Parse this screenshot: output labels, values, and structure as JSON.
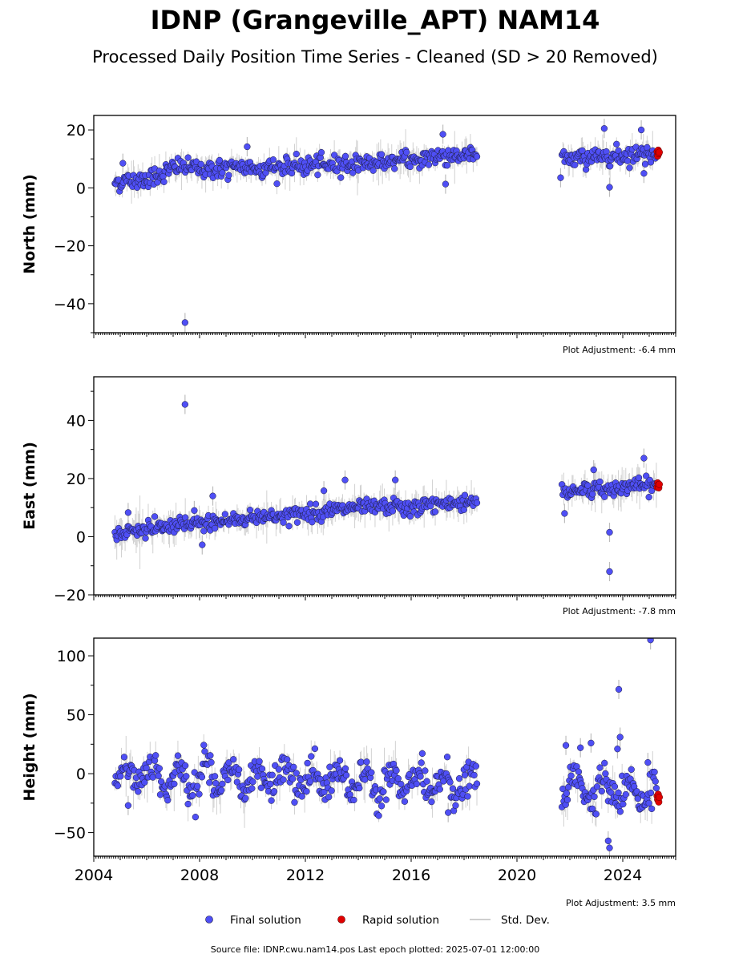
{
  "title": "IDNP (Grangeville_APT) NAM14",
  "subtitle": "Processed Daily Position Time Series - Cleaned (SD > 20 Removed)",
  "footer": "Source file: IDNP.cwu.nam14.pos  Last epoch plotted: 2025-07-01 12:00:00",
  "legend": {
    "final": "Final solution",
    "rapid": "Rapid solution",
    "sd": "Std. Dev."
  },
  "colors": {
    "final": "#4f4ff5",
    "rapid": "#e00000",
    "sd": "#bdbdbd",
    "edge": "#1a1a3a"
  },
  "chart_data": [
    {
      "type": "scatter",
      "panel": "north",
      "ylabel": "North (mm)",
      "adjustment": "Plot Adjustment: -6.4 mm",
      "xlim": [
        2004,
        2026
      ],
      "ylim": [
        -50,
        25
      ],
      "yticks": [
        20,
        0,
        -20,
        -40
      ],
      "ytick_labels": [
        "20",
        "0",
        "−20",
        "−40"
      ],
      "xticks": [
        2004,
        2008,
        2012,
        2016,
        2020,
        2024
      ],
      "xtick_labels": [
        "2004",
        "2008",
        "2012",
        "2016",
        "2020",
        "2024"
      ],
      "show_xtick_labels": false,
      "series": [
        {
          "name": "Final solution",
          "segments": [
            [
              2004.8,
              2.0
            ],
            [
              2005.5,
              2.5
            ],
            [
              2006.3,
              4.0
            ],
            [
              2007.2,
              7.5
            ],
            [
              2008.0,
              6.5
            ],
            [
              2009.0,
              6.5
            ],
            [
              2010.0,
              7.0
            ],
            [
              2011.0,
              7.0
            ],
            [
              2012.0,
              7.5
            ],
            [
              2013.0,
              8.0
            ],
            [
              2014.0,
              8.5
            ],
            [
              2015.0,
              9.0
            ],
            [
              2016.0,
              9.5
            ],
            [
              2017.0,
              11.0
            ],
            [
              2018.5,
              11.5
            ]
          ],
          "segments2": [
            [
              2021.7,
              10.0
            ],
            [
              2022.5,
              10.5
            ],
            [
              2023.3,
              11.0
            ],
            [
              2024.3,
              11.5
            ],
            [
              2025.3,
              12.0
            ]
          ],
          "noise": 1.6,
          "std": 2.6,
          "outliers": [
            [
              2007.45,
              -46.5
            ],
            [
              2017.3,
              1.3
            ],
            [
              2005.1,
              8.5
            ],
            [
              2009.8,
              14.2
            ],
            [
              2023.5,
              0.2
            ],
            [
              2023.3,
              20.5
            ],
            [
              2024.8,
              5.0
            ],
            [
              2024.7,
              20.0
            ],
            [
              2017.2,
              18.5
            ],
            [
              2021.65,
              3.5
            ]
          ]
        },
        {
          "name": "Rapid solution",
          "points": [
            [
              2025.3,
              12.5
            ],
            [
              2025.32,
              11.0
            ],
            [
              2025.34,
              13.0
            ],
            [
              2025.36,
              11.8
            ],
            [
              2025.38,
              12.3
            ]
          ]
        }
      ]
    },
    {
      "type": "scatter",
      "panel": "east",
      "ylabel": "East (mm)",
      "adjustment": "Plot Adjustment: -7.8 mm",
      "xlim": [
        2004,
        2026
      ],
      "ylim": [
        -20,
        55
      ],
      "yticks": [
        40,
        20,
        0,
        -20
      ],
      "ytick_labels": [
        "40",
        "20",
        "0",
        "−20"
      ],
      "xticks": [
        2004,
        2008,
        2012,
        2016,
        2020,
        2024
      ],
      "xtick_labels": [
        "2004",
        "2008",
        "2012",
        "2016",
        "2020",
        "2024"
      ],
      "show_xtick_labels": false,
      "series": [
        {
          "name": "Final solution",
          "segments": [
            [
              2004.8,
              1.0
            ],
            [
              2005.5,
              2.0
            ],
            [
              2006.5,
              3.0
            ],
            [
              2007.5,
              4.0
            ],
            [
              2008.5,
              5.0
            ],
            [
              2009.5,
              6.0
            ],
            [
              2010.5,
              7.0
            ],
            [
              2011.5,
              7.5
            ],
            [
              2012.5,
              8.5
            ],
            [
              2013.5,
              9.5
            ],
            [
              2014.5,
              10.0
            ],
            [
              2015.5,
              10.5
            ],
            [
              2016.0,
              9.0
            ],
            [
              2016.5,
              11.0
            ],
            [
              2017.5,
              11.5
            ],
            [
              2018.5,
              12.5
            ]
          ],
          "segments2": [
            [
              2021.7,
              15.0
            ],
            [
              2022.5,
              16.5
            ],
            [
              2023.3,
              16.0
            ],
            [
              2024.3,
              17.5
            ],
            [
              2025.3,
              17.5
            ]
          ],
          "noise": 1.3,
          "std": 3.0,
          "outliers": [
            [
              2007.45,
              45.5
            ],
            [
              2005.3,
              8.3
            ],
            [
              2007.8,
              9.0
            ],
            [
              2008.1,
              -2.8
            ],
            [
              2008.5,
              14.0
            ],
            [
              2013.5,
              19.5
            ],
            [
              2015.4,
              19.5
            ],
            [
              2023.5,
              -12.0
            ],
            [
              2023.5,
              1.5
            ],
            [
              2022.9,
              23.0
            ],
            [
              2024.8,
              27.0
            ],
            [
              2021.8,
              8.0
            ],
            [
              2012.7,
              15.8
            ]
          ]
        },
        {
          "name": "Rapid solution",
          "points": [
            [
              2025.3,
              17.0
            ],
            [
              2025.32,
              18.5
            ],
            [
              2025.34,
              17.8
            ],
            [
              2025.36,
              16.8
            ],
            [
              2025.38,
              18.0
            ]
          ]
        }
      ]
    },
    {
      "type": "scatter",
      "panel": "height",
      "ylabel": "Height (mm)",
      "adjustment": "Plot Adjustment: 3.5 mm",
      "xlim": [
        2004,
        2026
      ],
      "ylim": [
        -70,
        115
      ],
      "yticks": [
        100,
        50,
        0,
        -50
      ],
      "ytick_labels": [
        "100",
        "50",
        "0",
        "−50"
      ],
      "xticks": [
        2004,
        2008,
        2012,
        2016,
        2020,
        2024
      ],
      "xtick_labels": [
        "2004",
        "2008",
        "2012",
        "2016",
        "2020",
        "2024"
      ],
      "show_xtick_labels": true,
      "series": [
        {
          "name": "Final solution",
          "segments": [
            [
              2004.8,
              0.0
            ],
            [
              2018.5,
              -10.0
            ]
          ],
          "segments2": [
            [
              2021.7,
              -10.0
            ],
            [
              2025.3,
              -18.0
            ]
          ],
          "noise": 7.0,
          "seasonal": 10.0,
          "std": 8.0,
          "outliers": [
            [
              2025.05,
              113.5
            ],
            [
              2023.85,
              71.5
            ],
            [
              2023.9,
              31.0
            ],
            [
              2023.8,
              21.0
            ],
            [
              2022.8,
              26.0
            ],
            [
              2021.85,
              24.0
            ],
            [
              2023.5,
              -63.0
            ],
            [
              2023.45,
              -57.0
            ],
            [
              2005.3,
              -27.0
            ],
            [
              2017.4,
              -33.0
            ],
            [
              2024.95,
              9.5
            ],
            [
              2022.4,
              22.0
            ]
          ]
        },
        {
          "name": "Rapid solution",
          "points": [
            [
              2025.3,
              -19.0
            ],
            [
              2025.32,
              -22.0
            ],
            [
              2025.34,
              -17.5
            ],
            [
              2025.36,
              -24.0
            ],
            [
              2025.38,
              -20.0
            ]
          ]
        }
      ]
    }
  ]
}
